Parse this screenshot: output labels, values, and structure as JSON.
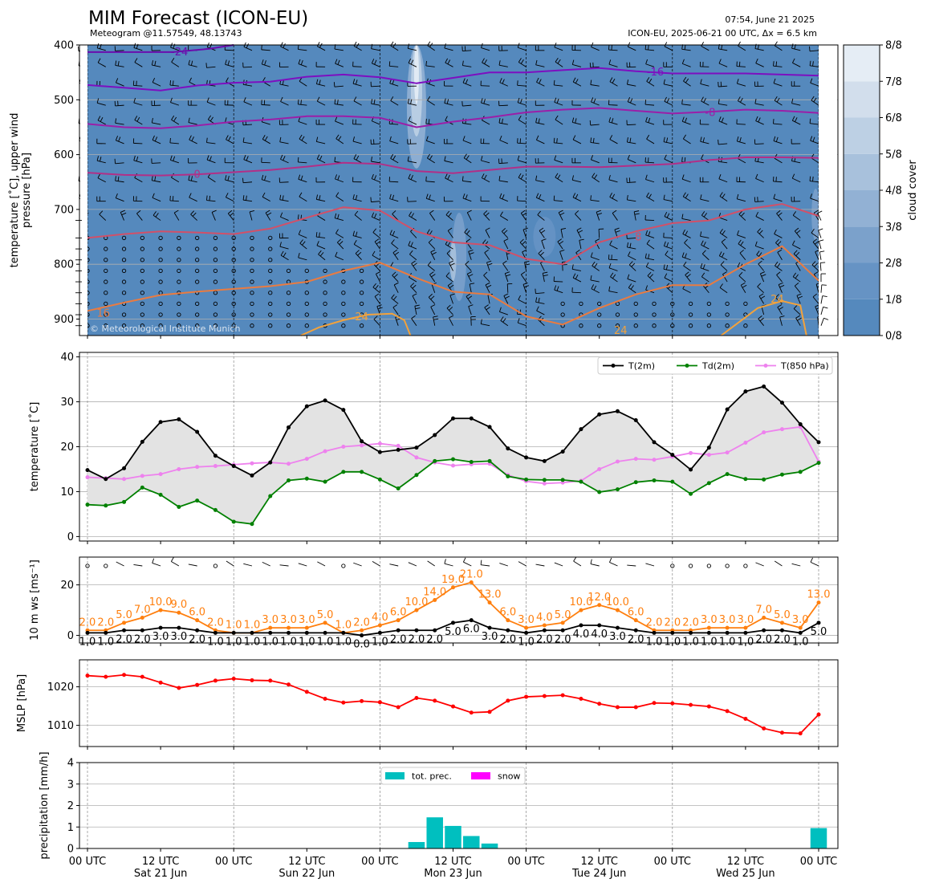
{
  "header": {
    "title": "MIM Forecast (ICON-EU)",
    "subtitle": "Meteogram @11.57549, 48.13743",
    "run_time": "07:54, June 21 2025",
    "model_info": "ICON-EU, 2025-06-21 00 UTC, Δx = 6.5 km",
    "copyright": "© Meteorological Institute Munich"
  },
  "x_axis": {
    "ticks": [
      {
        "t": 0,
        "line1": "00 UTC",
        "line2": ""
      },
      {
        "t": 12,
        "line1": "12 UTC",
        "line2": "Sat 21 Jun"
      },
      {
        "t": 24,
        "line1": "00 UTC",
        "line2": ""
      },
      {
        "t": 36,
        "line1": "12 UTC",
        "line2": "Sun 22 Jun"
      },
      {
        "t": 48,
        "line1": "00 UTC",
        "line2": ""
      },
      {
        "t": 60,
        "line1": "12 UTC",
        "line2": "Mon 23 Jun"
      },
      {
        "t": 72,
        "line1": "00 UTC",
        "line2": ""
      },
      {
        "t": 84,
        "line1": "12 UTC",
        "line2": "Tue 24 Jun"
      },
      {
        "t": 96,
        "line1": "00 UTC",
        "line2": ""
      },
      {
        "t": 108,
        "line1": "12 UTC",
        "line2": "Wed 25 Jun"
      },
      {
        "t": 120,
        "line1": "00 UTC",
        "line2": ""
      }
    ]
  },
  "chart_data": [
    {
      "type": "heatmap",
      "id": "upper",
      "ylabel": "temperature [˚C], upper wind\npressure [hPa]",
      "ylim": [
        930,
        400
      ],
      "yticks": [
        400,
        500,
        600,
        700,
        800,
        900
      ],
      "colorbar": {
        "label": "cloud cover",
        "ticks": [
          "0/8",
          "1/8",
          "2/8",
          "3/8",
          "4/8",
          "5/8",
          "6/8",
          "7/8",
          "8/8"
        ],
        "colors": [
          "#5589bd",
          "#6693c4",
          "#7ba1cb",
          "#92b1d4",
          "#a8c1dc",
          "#bdd0e4",
          "#d2deec",
          "#e5edf5",
          "#f4f8fb"
        ]
      },
      "isotherms": [
        {
          "label": "-24",
          "color": "#6a0dad",
          "x": [
            0,
            14,
            20,
            24
          ],
          "p": [
            413,
            413,
            407,
            400
          ]
        },
        {
          "label": "-16",
          "color": "#7d0fc0",
          "x": [
            0,
            6,
            12,
            18,
            24,
            30,
            36,
            42,
            48,
            54,
            60,
            66,
            72,
            78,
            84,
            90,
            96,
            102,
            108,
            114,
            120
          ],
          "p": [
            473,
            478,
            483,
            474,
            469,
            467,
            458,
            454,
            459,
            470,
            460,
            450,
            450,
            446,
            442,
            448,
            452,
            452,
            452,
            454,
            456
          ]
        },
        {
          "label": "-8",
          "color": "#9b1fa8",
          "x": [
            0,
            6,
            12,
            18,
            24,
            30,
            36,
            42,
            48,
            54,
            60,
            66,
            72,
            78,
            84,
            90,
            96,
            102,
            108,
            114,
            120
          ],
          "p": [
            544,
            550,
            552,
            547,
            540,
            536,
            530,
            530,
            533,
            550,
            540,
            532,
            523,
            518,
            515,
            520,
            525,
            522,
            518,
            520,
            524
          ]
        },
        {
          "label": "0",
          "color": "#b22f87",
          "x": [
            0,
            6,
            12,
            18,
            24,
            30,
            36,
            42,
            48,
            54,
            60,
            66,
            72,
            78,
            84,
            90,
            96,
            102,
            108,
            114,
            120
          ],
          "p": [
            633,
            637,
            638,
            636,
            632,
            628,
            622,
            615,
            617,
            630,
            634,
            628,
            622,
            622,
            623,
            620,
            617,
            610,
            605,
            605,
            606
          ]
        },
        {
          "label": "8",
          "color": "#d25068",
          "x": [
            0,
            6,
            12,
            18,
            24,
            30,
            36,
            42,
            48,
            54,
            60,
            66,
            72,
            78,
            84,
            90,
            96,
            102,
            108,
            114,
            120
          ],
          "p": [
            752,
            745,
            740,
            742,
            745,
            735,
            715,
            696,
            702,
            740,
            760,
            765,
            790,
            800,
            760,
            740,
            725,
            720,
            700,
            690,
            712
          ]
        },
        {
          "label": "16",
          "color": "#ea7b40",
          "x": [
            0,
            6,
            12,
            18,
            24,
            30,
            36,
            42,
            48,
            54,
            60,
            66,
            72,
            78,
            84,
            90,
            96,
            102,
            108,
            114,
            120
          ],
          "p": [
            885,
            870,
            856,
            850,
            845,
            840,
            832,
            812,
            797,
            825,
            850,
            855,
            895,
            910,
            880,
            855,
            838,
            838,
            800,
            767,
            830
          ]
        },
        {
          "label": "24",
          "color": "#f2a23c",
          "x": [
            35,
            38,
            42,
            46,
            50,
            52,
            53
          ],
          "p": [
            930,
            915,
            902,
            892,
            890,
            902,
            930
          ]
        },
        {
          "label": "24",
          "color": "#f2a23c",
          "x": [
            104,
            107,
            110,
            114,
            117,
            118
          ],
          "p": [
            930,
            905,
            880,
            867,
            875,
            930
          ]
        }
      ],
      "contour_labels": [
        {
          "text": "-24",
          "x": 15.1,
          "p": 412,
          "color": "#6a0dad"
        },
        {
          "text": "-16",
          "x": 93.2,
          "p": 448,
          "color": "#7d0fc0"
        },
        {
          "text": "-8",
          "x": 102.2,
          "p": 522,
          "color": "#9b1fa8"
        },
        {
          "text": "0",
          "x": 18,
          "p": 635,
          "color": "#b22f87"
        },
        {
          "text": "8",
          "x": 90.4,
          "p": 749,
          "color": "#d25068"
        },
        {
          "text": "16",
          "x": 2.6,
          "p": 888,
          "color": "#ea7b40"
        },
        {
          "text": "24",
          "x": 45,
          "p": 895,
          "color": "#f2a23c"
        },
        {
          "text": "24",
          "x": 87.5,
          "p": 920,
          "color": "#f2a23c"
        },
        {
          "text": "24",
          "x": 113.2,
          "p": 863,
          "color": "#f2a23c"
        }
      ]
    },
    {
      "type": "line",
      "id": "temperature",
      "ylabel": "temperature [˚C]",
      "ylim": [
        -1,
        41
      ],
      "yticks": [
        0,
        10,
        20,
        30,
        40
      ],
      "x": [
        0,
        3,
        6,
        9,
        12,
        15,
        18,
        21,
        24,
        27,
        30,
        33,
        36,
        39,
        42,
        45,
        48,
        51,
        54,
        57,
        60,
        63,
        66,
        69,
        72,
        75,
        78,
        81,
        84,
        87,
        90,
        93,
        96,
        99,
        102,
        105,
        108,
        111,
        114,
        117,
        120
      ],
      "series": [
        {
          "name": "T(2m)",
          "color": "#000000",
          "values": [
            14.8,
            12.8,
            15.2,
            21.1,
            25.5,
            26.1,
            23.3,
            18,
            15.7,
            13.6,
            16.5,
            24.3,
            29,
            30.3,
            28.2,
            21.2,
            18.8,
            19.3,
            19.8,
            22.6,
            26.3,
            26.3,
            24.4,
            19.6,
            17.6,
            16.8,
            18.9,
            23.9,
            27.2,
            27.9,
            25.9,
            21,
            18.2,
            14.9,
            19.8,
            28.3,
            32.3,
            33.4,
            29.8,
            25,
            21
          ]
        },
        {
          "name": "Td(2m)",
          "color": "#008000",
          "values": [
            7.1,
            6.9,
            7.7,
            10.9,
            9.3,
            6.6,
            8,
            5.9,
            3.3,
            2.8,
            9,
            12.5,
            12.9,
            12.2,
            14.4,
            14.4,
            12.7,
            10.7,
            13.7,
            16.8,
            17.2,
            16.6,
            16.8,
            13.4,
            12.7,
            12.6,
            12.6,
            12.2,
            9.9,
            10.5,
            12.1,
            12.5,
            12.2,
            9.5,
            11.9,
            13.9,
            12.8,
            12.7,
            13.8,
            14.4,
            16.4
          ]
        },
        {
          "name": "T(850 hPa)",
          "color": "#ee82ee",
          "values": [
            13.2,
            13,
            12.8,
            13.5,
            13.9,
            15,
            15.5,
            15.7,
            16,
            16.3,
            16.5,
            16.2,
            17.3,
            19,
            20,
            20.3,
            20.7,
            20.2,
            17.6,
            16.5,
            15.8,
            16.1,
            16.2,
            13.7,
            12.3,
            11.8,
            12,
            12.4,
            15,
            16.7,
            17.3,
            17.1,
            17.8,
            18.6,
            18.2,
            18.7,
            20.9,
            23.2,
            23.9,
            24.4,
            16.7
          ]
        }
      ],
      "legend": "top-right"
    },
    {
      "type": "line",
      "id": "wind10m",
      "ylabel": "10 m ws [ms⁻¹]",
      "ylim": [
        -3,
        31
      ],
      "yticks": [
        0,
        20
      ],
      "x": [
        0,
        3,
        6,
        9,
        12,
        15,
        18,
        21,
        24,
        27,
        30,
        33,
        36,
        39,
        42,
        45,
        48,
        51,
        54,
        57,
        60,
        63,
        66,
        69,
        72,
        75,
        78,
        81,
        84,
        87,
        90,
        93,
        96,
        99,
        102,
        105,
        108,
        111,
        114,
        117,
        120
      ],
      "series": [
        {
          "name": "wind speed",
          "color": "#000000",
          "values": [
            1,
            1,
            2,
            2,
            3,
            3,
            2,
            1,
            1,
            1,
            1,
            1,
            1,
            1,
            1,
            0,
            1,
            2,
            2,
            2,
            5,
            6,
            3,
            2,
            1,
            2,
            2,
            4,
            4,
            3,
            2,
            1,
            1,
            1,
            1,
            1,
            1,
            2,
            2,
            1,
            5
          ]
        },
        {
          "name": "gusts",
          "color": "#ff7f0e",
          "values": [
            2,
            2,
            5,
            7,
            10,
            9,
            6,
            2,
            1,
            1,
            3,
            3,
            3,
            5,
            1,
            2,
            4,
            6,
            10,
            14,
            19,
            21,
            13,
            6,
            3,
            4,
            5,
            10,
            12,
            10,
            6,
            2,
            2,
            2,
            3,
            3,
            3,
            7,
            5,
            3,
            13
          ]
        }
      ],
      "labels_ws": [
        "1.0",
        "1.0",
        "2.0",
        "2.0",
        "3.0",
        "3.0",
        "2.0",
        "1.0",
        "1.0",
        "1.0",
        "1.0",
        "1.0",
        "1.0",
        "1.0",
        "1.0",
        "0.0",
        "1.0",
        "2.0",
        "2.0",
        "2.0",
        "5.0",
        "6.0",
        "3.0",
        "2.0",
        "1.0",
        "2.0",
        "2.0",
        "4.0",
        "4.0",
        "3.0",
        "2.0",
        "1.0",
        "1.0",
        "1.0",
        "1.0",
        "1.0",
        "1.0",
        "2.0",
        "2.0",
        "1.0",
        "5.0"
      ],
      "labels_gust": [
        "2.0",
        "2.0",
        "5.0",
        "7.0",
        "10.0",
        "9.0",
        "6.0",
        "2.0",
        "1.0",
        "1.0",
        "3.0",
        "3.0",
        "3.0",
        "5.0",
        "1.0",
        "2.0",
        "4.0",
        "6.0",
        "10.0",
        "14.0",
        "19.0",
        "21.0",
        "13.0",
        "6.0",
        "3.0",
        "4.0",
        "5.0",
        "10.0",
        "12.0",
        "10.0",
        "6.0",
        "2.0",
        "2.0",
        "2.0",
        "3.0",
        "3.0",
        "3.0",
        "7.0",
        "5.0",
        "3.0",
        "13.0"
      ]
    },
    {
      "type": "line",
      "id": "mslp",
      "ylabel": "MSLP [hPa]",
      "ylim": [
        1004.5,
        1027
      ],
      "yticks": [
        1010,
        1020
      ],
      "x": [
        0,
        3,
        6,
        9,
        12,
        15,
        18,
        21,
        24,
        27,
        30,
        33,
        36,
        39,
        42,
        45,
        48,
        51,
        54,
        57,
        60,
        63,
        66,
        69,
        72,
        75,
        78,
        81,
        84,
        87,
        90,
        93,
        96,
        99,
        102,
        105,
        108,
        111,
        114,
        117,
        120
      ],
      "series": [
        {
          "name": "MSLP",
          "color": "#ff0000",
          "values": [
            1022.9,
            1022.6,
            1023.1,
            1022.6,
            1021.1,
            1019.7,
            1020.5,
            1021.6,
            1022.1,
            1021.7,
            1021.6,
            1020.6,
            1018.7,
            1016.9,
            1015.9,
            1016.3,
            1016,
            1014.7,
            1017.1,
            1016.4,
            1014.9,
            1013.3,
            1013.5,
            1016.4,
            1017.4,
            1017.6,
            1017.8,
            1016.9,
            1015.6,
            1014.7,
            1014.7,
            1015.8,
            1015.7,
            1015.3,
            1014.9,
            1013.7,
            1011.7,
            1009.2,
            1008.1,
            1007.9,
            1012.8
          ]
        }
      ]
    },
    {
      "type": "bar",
      "id": "precip",
      "ylabel": "precipitation [mm/h]",
      "ylim": [
        0,
        4
      ],
      "yticks": [
        0,
        1,
        2,
        3,
        4
      ],
      "series": [
        {
          "name": "tot. prec.",
          "color": "#00bfbf",
          "bars": [
            {
              "t": 54,
              "v": 0.3
            },
            {
              "t": 57,
              "v": 1.45
            },
            {
              "t": 60,
              "v": 1.05
            },
            {
              "t": 63,
              "v": 0.58
            },
            {
              "t": 66,
              "v": 0.23
            },
            {
              "t": 120,
              "v": 0.95
            }
          ]
        },
        {
          "name": "snow",
          "color": "#ff00ff",
          "bars": []
        }
      ],
      "legend": "top-center"
    }
  ]
}
